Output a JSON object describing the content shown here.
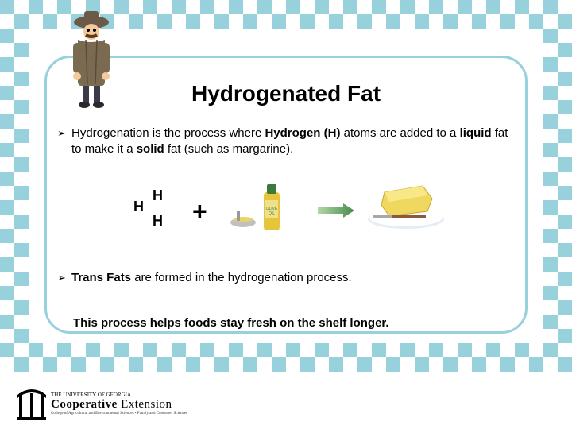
{
  "slide": {
    "title": "Hydrogenated Fat",
    "bullet1_html": "Hydrogenation is the process where <b>Hydrogen (H)</b> atoms are added to a <b>liquid</b> fat to make it a <b>solid</b> fat (such as margarine).",
    "bullet2_html": "<b>Trans Fats</b> are formed in the hydrogenation process.",
    "summary": "This process helps foods stay fresh on the shelf longer.",
    "h_label": "H",
    "plus": "+",
    "colors": {
      "border": "#96d1dc",
      "text": "#000000",
      "background": "#ffffff"
    },
    "fonts": {
      "title_size": 28,
      "body_size": 15
    }
  },
  "footer": {
    "line1": "THE UNIVERSITY OF GEORGIA",
    "line2_a": "Cooperative",
    "line2_b": "Extension",
    "line3": "College of Agricultural and Environmental Sciences • Family and Consumer Sciences"
  }
}
